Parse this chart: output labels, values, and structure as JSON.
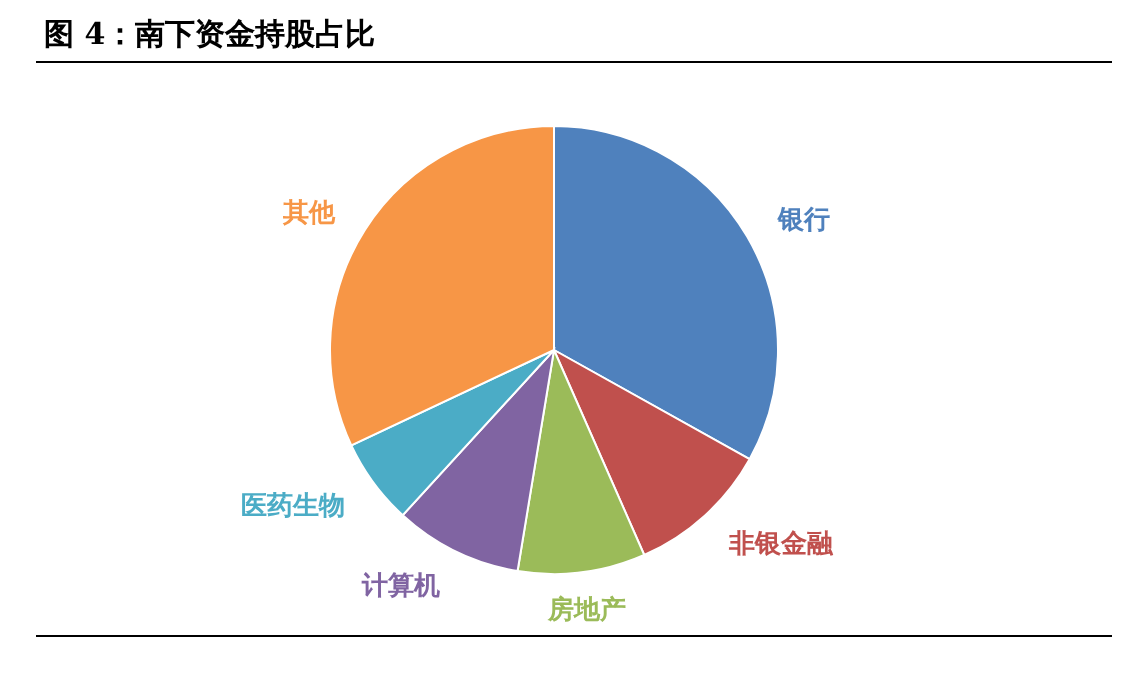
{
  "chart_data": {
    "type": "pie",
    "title": "图 4：南下资金持股占比",
    "categories": [
      "银行",
      "非银金融",
      "房地产",
      "计算机",
      "医药生物",
      "其他"
    ],
    "values": [
      33.1,
      10.3,
      9.2,
      9.2,
      6.2,
      32.0
    ],
    "colors": [
      "#4f81bd",
      "#c0504d",
      "#9bbb59",
      "#8064a2",
      "#4bacc6",
      "#f79646"
    ]
  }
}
